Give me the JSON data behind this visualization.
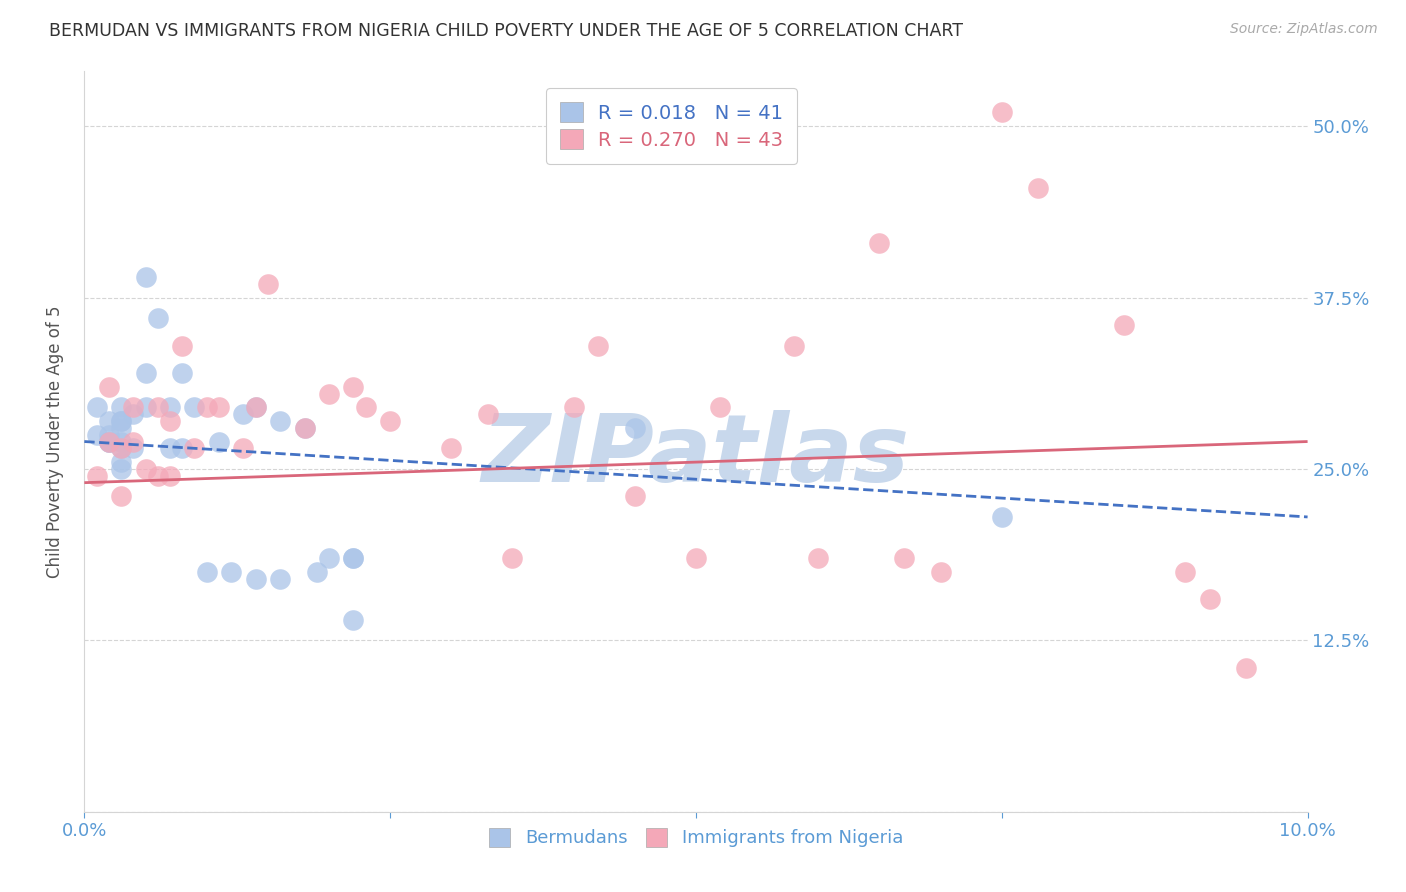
{
  "title": "BERMUDAN VS IMMIGRANTS FROM NIGERIA CHILD POVERTY UNDER THE AGE OF 5 CORRELATION CHART",
  "source": "Source: ZipAtlas.com",
  "ylabel": "Child Poverty Under the Age of 5",
  "xlim": [
    0.0,
    0.1
  ],
  "ylim": [
    0.0,
    0.54
  ],
  "yticks": [
    0.0,
    0.125,
    0.25,
    0.375,
    0.5
  ],
  "ytick_labels": [
    "",
    "12.5%",
    "25.0%",
    "37.5%",
    "50.0%"
  ],
  "xticks": [
    0.0,
    0.025,
    0.05,
    0.075,
    0.1
  ],
  "xtick_labels": [
    "0.0%",
    "",
    "",
    "",
    "10.0%"
  ],
  "bermuda_color": "#aac4e8",
  "nigeria_color": "#f4a8b8",
  "trendline1_color": "#4472c4",
  "trendline2_color": "#d9667a",
  "grid_color": "#d5d5d5",
  "axis_color": "#5b9bd5",
  "watermark": "ZIPatlas",
  "watermark_color": "#c8d8ec",
  "bermuda_x": [
    0.001,
    0.001,
    0.002,
    0.002,
    0.002,
    0.002,
    0.003,
    0.003,
    0.003,
    0.003,
    0.003,
    0.003,
    0.003,
    0.003,
    0.004,
    0.004,
    0.005,
    0.005,
    0.005,
    0.006,
    0.007,
    0.007,
    0.008,
    0.008,
    0.009,
    0.01,
    0.011,
    0.012,
    0.013,
    0.014,
    0.014,
    0.016,
    0.016,
    0.018,
    0.019,
    0.02,
    0.022,
    0.022,
    0.022,
    0.045,
    0.075
  ],
  "bermuda_y": [
    0.295,
    0.275,
    0.285,
    0.275,
    0.27,
    0.27,
    0.295,
    0.285,
    0.285,
    0.28,
    0.27,
    0.265,
    0.255,
    0.25,
    0.29,
    0.265,
    0.39,
    0.32,
    0.295,
    0.36,
    0.295,
    0.265,
    0.32,
    0.265,
    0.295,
    0.175,
    0.27,
    0.175,
    0.29,
    0.295,
    0.17,
    0.285,
    0.17,
    0.28,
    0.175,
    0.185,
    0.185,
    0.185,
    0.14,
    0.28,
    0.215
  ],
  "nigeria_x": [
    0.001,
    0.002,
    0.002,
    0.003,
    0.003,
    0.004,
    0.004,
    0.005,
    0.006,
    0.006,
    0.007,
    0.007,
    0.008,
    0.009,
    0.01,
    0.011,
    0.013,
    0.014,
    0.015,
    0.018,
    0.02,
    0.022,
    0.023,
    0.025,
    0.03,
    0.033,
    0.035,
    0.04,
    0.042,
    0.045,
    0.05,
    0.052,
    0.058,
    0.06,
    0.065,
    0.067,
    0.07,
    0.075,
    0.078,
    0.085,
    0.09,
    0.092,
    0.095
  ],
  "nigeria_y": [
    0.245,
    0.31,
    0.27,
    0.265,
    0.23,
    0.295,
    0.27,
    0.25,
    0.295,
    0.245,
    0.285,
    0.245,
    0.34,
    0.265,
    0.295,
    0.295,
    0.265,
    0.295,
    0.385,
    0.28,
    0.305,
    0.31,
    0.295,
    0.285,
    0.265,
    0.29,
    0.185,
    0.295,
    0.34,
    0.23,
    0.185,
    0.295,
    0.34,
    0.185,
    0.415,
    0.185,
    0.175,
    0.51,
    0.455,
    0.355,
    0.175,
    0.155,
    0.105
  ],
  "trendline1_x": [
    0.0,
    0.1
  ],
  "trendline1_y": [
    0.27,
    0.215
  ],
  "trendline2_x": [
    0.0,
    0.1
  ],
  "trendline2_y": [
    0.24,
    0.27
  ]
}
